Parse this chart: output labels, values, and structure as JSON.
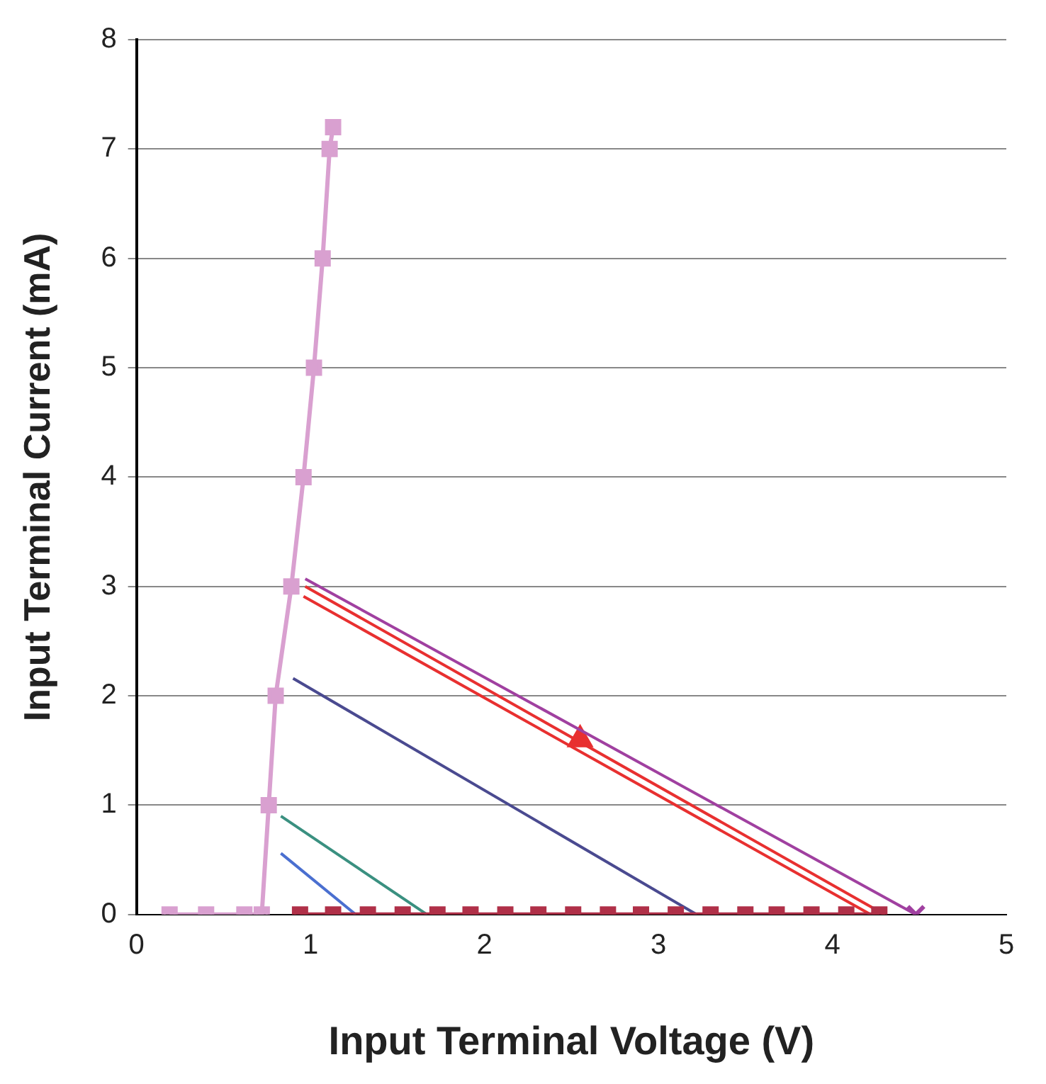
{
  "chart_data": {
    "type": "line",
    "xlabel": "Input Terminal Voltage (V)",
    "ylabel": "Input Terminal Current (mA)",
    "xlim": [
      0,
      5
    ],
    "ylim": [
      0,
      8
    ],
    "xticks": [
      0,
      1,
      2,
      3,
      4,
      5
    ],
    "yticks": [
      0,
      1,
      2,
      3,
      4,
      5,
      6,
      7,
      8
    ],
    "grid": "y",
    "legend": false,
    "series": [
      {
        "color": "#d9a0d0",
        "marker": "square",
        "x": [
          0.19,
          0.4,
          0.62,
          0.72,
          0.76,
          0.8,
          0.89,
          0.96,
          1.02,
          1.07,
          1.11,
          1.13
        ],
        "values": [
          0,
          0,
          0,
          0,
          1,
          2,
          3,
          4,
          5,
          6,
          7,
          7.2
        ]
      },
      {
        "color": "#b03048",
        "marker": "square",
        "x": [
          0.94,
          1.13,
          1.33,
          1.53,
          1.73,
          1.92,
          2.12,
          2.31,
          2.51,
          2.71,
          2.9,
          3.1,
          3.3,
          3.5,
          3.68,
          3.88,
          4.08,
          4.27
        ],
        "values": [
          0,
          0,
          0,
          0,
          0,
          0,
          0,
          0,
          0,
          0,
          0,
          0,
          0,
          0,
          0,
          0,
          0,
          0
        ]
      },
      {
        "color": "#4a6fd0",
        "marker": "none",
        "x": [
          0.83,
          1.26
        ],
        "values": [
          0.56,
          0
        ]
      },
      {
        "color": "#3a9080",
        "marker": "none",
        "x": [
          0.83,
          1.67
        ],
        "values": [
          0.9,
          0
        ]
      },
      {
        "color": "#4a4a90",
        "marker": "none",
        "x": [
          0.9,
          3.22
        ],
        "values": [
          2.16,
          0
        ]
      },
      {
        "color": "#e83030",
        "marker": "none",
        "x": [
          0.96,
          4.22
        ],
        "values": [
          2.91,
          0
        ]
      },
      {
        "color": "#e83030",
        "marker": "none",
        "x": [
          0.97,
          4.3
        ],
        "values": [
          3.0,
          0
        ]
      },
      {
        "color": "#a040a0",
        "marker": "none",
        "x": [
          0.97,
          4.48
        ],
        "values": [
          3.07,
          0
        ]
      },
      {
        "type": "scatter",
        "color": "#e83030",
        "marker": "triangle",
        "x": [
          2.55
        ],
        "values": [
          1.6
        ]
      },
      {
        "type": "scatter",
        "color": "#a040a0",
        "marker": "cross",
        "x": [
          4.48
        ],
        "values": [
          0
        ]
      }
    ]
  }
}
